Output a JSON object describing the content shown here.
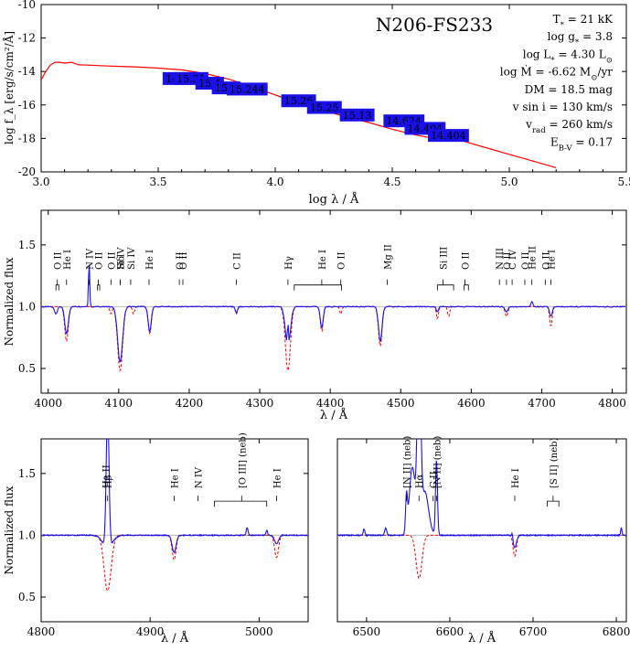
{
  "chart_data": [
    {
      "type": "line",
      "title": "N206-FS233",
      "xlabel": "log λ / Å",
      "ylabel": "log f_λ [erg/s/cm²/Å]",
      "xlim": [
        3.0,
        5.5
      ],
      "ylim": [
        -20,
        -10
      ],
      "xticks": [
        "3.0",
        "3.5",
        "4.0",
        "4.5",
        "5.0",
        "5.5"
      ],
      "yticks": [
        "-20",
        "-18",
        "-16",
        "-14",
        "-12",
        "-10"
      ],
      "series": [
        {
          "color": "#ff0000",
          "x": [
            3.0,
            3.02,
            3.04,
            3.06,
            3.08,
            3.1,
            3.13,
            3.16,
            3.2,
            3.25,
            3.3,
            3.4,
            3.5,
            3.55,
            3.6,
            3.7,
            3.8,
            3.9,
            4.0,
            4.1,
            4.2,
            4.3,
            4.4,
            4.5,
            4.6,
            4.7,
            4.75,
            4.8,
            4.85,
            4.9,
            5.0,
            5.1,
            5.2
          ],
          "y": [
            -14.5,
            -14.0,
            -13.6,
            -13.45,
            -13.45,
            -13.5,
            -13.45,
            -13.6,
            -13.62,
            -13.65,
            -13.68,
            -13.72,
            -13.8,
            -13.85,
            -13.9,
            -14.12,
            -14.45,
            -14.9,
            -15.4,
            -15.9,
            -16.3,
            -16.7,
            -17.05,
            -17.45,
            -17.8,
            -18.05,
            -18.0,
            -18.15,
            -18.35,
            -18.55,
            -18.95,
            -19.35,
            -19.75
          ]
        }
      ],
      "photometry": [
        {
          "label": "14.1",
          "x": 3.58,
          "y": -14.42
        },
        {
          "label": "15.31",
          "x": 3.64,
          "y": -14.42
        },
        {
          "label": "15.4",
          "x": 3.72,
          "y": -14.7
        },
        {
          "label": "15.5",
          "x": 3.79,
          "y": -14.98
        },
        {
          "label": "15.244",
          "x": 3.88,
          "y": -15.05
        },
        {
          "label": "15.26",
          "x": 4.1,
          "y": -15.75
        },
        {
          "label": "15.25",
          "x": 4.21,
          "y": -16.15
        },
        {
          "label": "15.13",
          "x": 4.35,
          "y": -16.6
        },
        {
          "label": "14.624",
          "x": 4.55,
          "y": -16.95
        },
        {
          "label": "14.404",
          "x": 4.64,
          "y": -17.4
        },
        {
          "label": "14.404",
          "x": 4.74,
          "y": -17.82
        }
      ],
      "params": [
        {
          "label": "T<sub>*</sub> = 21 kK"
        },
        {
          "label": "log g<sub>*</sub> = 3.8"
        },
        {
          "label": "log L<sub>*</sub> = 4.30 L<sub>⊙</sub>"
        },
        {
          "label": "log Ṁ = -6.62 M<sub>⊙</sub>/yr"
        },
        {
          "label": "DM = 18.5 mag"
        },
        {
          "label": "v sin i = 130 km/s"
        },
        {
          "label": "v<sub>rad</sub> = 260 km/s"
        },
        {
          "label": "E<sub>B-V</sub> = 0.17"
        }
      ]
    },
    {
      "type": "line",
      "xlabel": "λ / Å",
      "ylabel": "Normalized flux",
      "xlim": [
        3990,
        4820
      ],
      "ylim": [
        0.3,
        1.78
      ],
      "xticks": [
        "4000",
        "4100",
        "4200",
        "4300",
        "4400",
        "4500",
        "4600",
        "4700",
        "4800"
      ],
      "yticks": [
        "0.5",
        "1.0",
        "1.5"
      ],
      "lines": [
        {
          "x": 4013,
          "name": "O II",
          "group": [
            4011,
            4015
          ]
        },
        {
          "x": 4026,
          "name": "He I"
        },
        {
          "x": 4058,
          "name": "N IV"
        },
        {
          "x": 4071,
          "name": "O II",
          "group": [
            4070,
            4073
          ]
        },
        {
          "x": 4089,
          "name": "O II"
        },
        {
          "x": 4102,
          "name": "Si IV"
        },
        {
          "x": 4102,
          "name": "Hδ"
        },
        {
          "x": 4117,
          "name": "Si IV"
        },
        {
          "x": 4143,
          "name": "He I"
        },
        {
          "x": 4186,
          "name": "O II"
        },
        {
          "x": 4191,
          "name": "O II"
        },
        {
          "x": 4267,
          "name": "C II"
        },
        {
          "x": 4340,
          "name": "Hγ"
        },
        {
          "x": 4388,
          "name": "He I",
          "group": [
            4349,
            4416
          ]
        },
        {
          "x": 4415,
          "name": "O II"
        },
        {
          "x": 4481,
          "name": "Mg II"
        },
        {
          "x": 4560,
          "name": "Si III",
          "group": [
            4552,
            4575
          ]
        },
        {
          "x": 4591,
          "name": "O II",
          "group": [
            4590,
            4596
          ]
        },
        {
          "x": 4640,
          "name": "N III"
        },
        {
          "x": 4650,
          "name": "O II"
        },
        {
          "x": 4658,
          "name": "C IV"
        },
        {
          "x": 4676,
          "name": "O II"
        },
        {
          "x": 4686,
          "name": "He II"
        },
        {
          "x": 4705,
          "name": "O II"
        },
        {
          "x": 4713,
          "name": "He I"
        }
      ]
    },
    {
      "type": "line",
      "xlabel": "λ / Å",
      "ylabel": "Normalized flux",
      "xlim": [
        4800,
        5045
      ],
      "ylim": [
        0.3,
        1.78
      ],
      "xticks": [
        "4800",
        "4900",
        "5000"
      ],
      "yticks": [
        "0.5",
        "1.0",
        "1.5"
      ],
      "lines": [
        {
          "x": 4859,
          "name": "He II"
        },
        {
          "x": 4861,
          "name": "Hβ"
        },
        {
          "x": 4922,
          "name": "He I"
        },
        {
          "x": 4944,
          "name": "N IV"
        },
        {
          "x": 4984,
          "name": "[O III] (neb)",
          "group": [
            4959,
            5007
          ]
        },
        {
          "x": 5016,
          "name": "He I"
        }
      ]
    },
    {
      "type": "line",
      "xlabel": "λ / Å",
      "ylabel": "",
      "xlim": [
        6465,
        6812
      ],
      "ylim": [
        0.3,
        1.78
      ],
      "xticks": [
        "6500",
        "6600",
        "6700",
        "6800"
      ],
      "yticks": [],
      "lines": [
        {
          "x": 6548,
          "name": "[N II] (neb)"
        },
        {
          "x": 6563,
          "name": "Hα"
        },
        {
          "x": 6580,
          "name": "C II"
        },
        {
          "x": 6584,
          "name": "[N II] (neb)"
        },
        {
          "x": 6678,
          "name": "He I"
        },
        {
          "x": 6724,
          "name": "[S II] (neb)",
          "group": [
            6717,
            6731
          ]
        }
      ]
    }
  ]
}
